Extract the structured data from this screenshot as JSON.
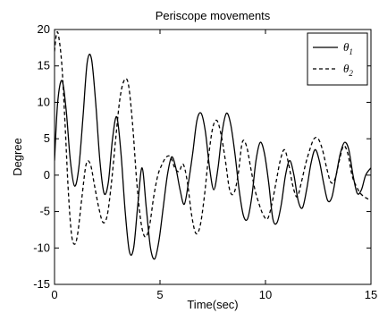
{
  "chart_data": {
    "type": "line",
    "title": "Periscope movements",
    "xlabel": "Time(sec)",
    "ylabel": "Degree",
    "xlim": [
      0,
      15
    ],
    "ylim": [
      -15,
      20
    ],
    "xticks": [
      0,
      5,
      10,
      15
    ],
    "yticks": [
      -15,
      -10,
      -5,
      0,
      5,
      10,
      15,
      20
    ],
    "grid": false,
    "legend_position": "top-right",
    "series": [
      {
        "name": "θ1",
        "legend_symbol": "θ",
        "legend_subscript": "1",
        "style": "solid",
        "color": "#000000",
        "x": [
          0,
          0.15,
          0.35,
          0.55,
          0.75,
          0.95,
          1.15,
          1.35,
          1.55,
          1.75,
          1.95,
          2.15,
          2.35,
          2.55,
          2.75,
          2.95,
          3.15,
          3.35,
          3.55,
          3.75,
          3.95,
          4.15,
          4.35,
          4.55,
          4.75,
          4.95,
          5.15,
          5.35,
          5.55,
          5.75,
          5.95,
          6.15,
          6.35,
          6.55,
          6.75,
          6.95,
          7.15,
          7.35,
          7.55,
          7.75,
          7.95,
          8.15,
          8.35,
          8.55,
          8.75,
          8.95,
          9.15,
          9.35,
          9.55,
          9.75,
          9.95,
          10.15,
          10.35,
          10.55,
          10.75,
          10.95,
          11.15,
          11.35,
          11.55,
          11.75,
          11.95,
          12.15,
          12.35,
          12.55,
          12.75,
          12.95,
          13.15,
          13.35,
          13.55,
          13.75,
          13.95,
          14.15,
          14.35,
          14.55,
          14.75,
          15
        ],
        "y": [
          2,
          10,
          13,
          9,
          2,
          -1.5,
          1,
          8,
          15.5,
          16,
          10,
          2,
          -2.5,
          -1,
          5,
          8,
          3,
          -5,
          -10.5,
          -10,
          -4,
          1,
          -4.5,
          -10,
          -11.5,
          -9,
          -4.5,
          0,
          2.5,
          1,
          -2,
          -4,
          -1,
          3,
          7.5,
          8.5,
          6,
          1,
          -2,
          1,
          6,
          8.5,
          7,
          3,
          -2,
          -5.5,
          -6,
          -3,
          2,
          4.5,
          3,
          -1,
          -6,
          -6.5,
          -4,
          0,
          2,
          0,
          -3.5,
          -4.5,
          -2,
          1.5,
          3.5,
          2,
          -1,
          -3.5,
          -3,
          0,
          3,
          4.5,
          3.5,
          0,
          -2.5,
          -2,
          0,
          1
        ]
      },
      {
        "name": "θ2",
        "legend_symbol": "θ",
        "legend_subscript": "2",
        "style": "dashed",
        "color": "#000000",
        "x": [
          0,
          0.1,
          0.2,
          0.35,
          0.5,
          0.65,
          0.8,
          0.95,
          1.1,
          1.3,
          1.5,
          1.7,
          1.9,
          2.1,
          2.3,
          2.5,
          2.7,
          2.9,
          3.1,
          3.3,
          3.5,
          3.7,
          3.9,
          4.1,
          4.3,
          4.5,
          4.7,
          4.9,
          5.1,
          5.3,
          5.5,
          5.7,
          5.9,
          6.1,
          6.3,
          6.5,
          6.7,
          6.9,
          7.1,
          7.3,
          7.5,
          7.7,
          7.9,
          8.1,
          8.3,
          8.5,
          8.7,
          8.9,
          9.1,
          9.3,
          9.5,
          9.7,
          9.9,
          10.1,
          10.3,
          10.5,
          10.7,
          10.9,
          11.1,
          11.3,
          11.5,
          11.7,
          11.9,
          12.1,
          12.3,
          12.5,
          12.7,
          12.9,
          13.1,
          13.3,
          13.5,
          13.7,
          13.9,
          14.1,
          14.3,
          14.5,
          14.7,
          15
        ],
        "y": [
          17,
          19.5,
          19,
          15,
          7,
          -2,
          -8,
          -9.5,
          -8,
          -3,
          1.5,
          1.5,
          -1.5,
          -4.5,
          -6.5,
          -5.5,
          -1,
          5,
          10.5,
          13,
          12.5,
          7,
          -1,
          -6.5,
          -8.5,
          -7,
          -3,
          0,
          1.5,
          2.5,
          2.5,
          1,
          0.5,
          1.5,
          -1,
          -5.5,
          -8,
          -7,
          -3,
          2.5,
          6.5,
          7.5,
          5.5,
          2,
          -2,
          -2.5,
          0,
          4.5,
          4,
          1,
          -2,
          -4,
          -5.5,
          -6,
          -4,
          -1,
          2,
          3.5,
          1.5,
          -1.5,
          -3,
          -1,
          1.5,
          3.5,
          5,
          5,
          3.5,
          1,
          -1,
          -0.5,
          2,
          4,
          3,
          0,
          -1.5,
          -2.5,
          -3,
          -3.5
        ]
      }
    ]
  }
}
